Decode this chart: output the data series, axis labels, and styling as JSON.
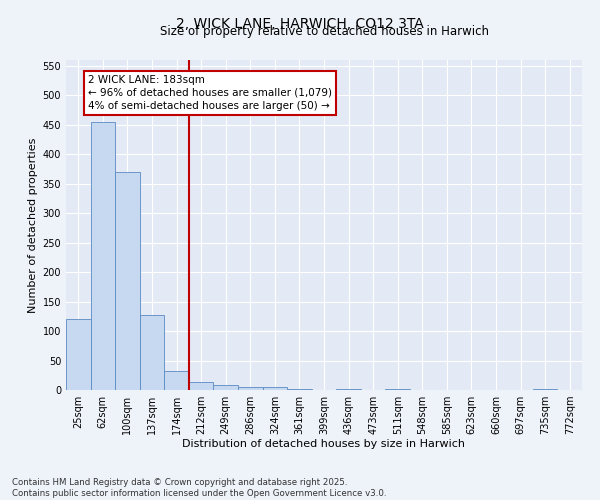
{
  "title_line1": "2, WICK LANE, HARWICH, CO12 3TA",
  "title_line2": "Size of property relative to detached houses in Harwich",
  "xlabel": "Distribution of detached houses by size in Harwich",
  "ylabel": "Number of detached properties",
  "categories": [
    "25sqm",
    "62sqm",
    "100sqm",
    "137sqm",
    "174sqm",
    "212sqm",
    "249sqm",
    "286sqm",
    "324sqm",
    "361sqm",
    "399sqm",
    "436sqm",
    "473sqm",
    "511sqm",
    "548sqm",
    "585sqm",
    "623sqm",
    "660sqm",
    "697sqm",
    "735sqm",
    "772sqm"
  ],
  "values": [
    120,
    455,
    370,
    128,
    33,
    14,
    8,
    5,
    5,
    1,
    0,
    1,
    0,
    1,
    0,
    0,
    0,
    0,
    0,
    1,
    0
  ],
  "bar_color": "#c6d9f0",
  "bar_edge_color": "#5b8ac5",
  "vline_color": "#c00000",
  "ylim": [
    0,
    560
  ],
  "yticks": [
    0,
    50,
    100,
    150,
    200,
    250,
    300,
    350,
    400,
    450,
    500,
    550
  ],
  "fig_bg_color": "#eef2f9",
  "ax_bg_color": "#e4eaf5",
  "annotation_text": "2 WICK LANE: 183sqm\n← 96% of detached houses are smaller (1,079)\n4% of semi-detached houses are larger (50) →",
  "annotation_box_color": "#c00000",
  "footnote": "Contains HM Land Registry data © Crown copyright and database right 2025.\nContains public sector information licensed under the Open Government Licence v3.0.",
  "title_fontsize": 10,
  "subtitle_fontsize": 8.5,
  "ylabel_fontsize": 8,
  "xlabel_fontsize": 8,
  "tick_fontsize": 7,
  "annot_fontsize": 7.5
}
